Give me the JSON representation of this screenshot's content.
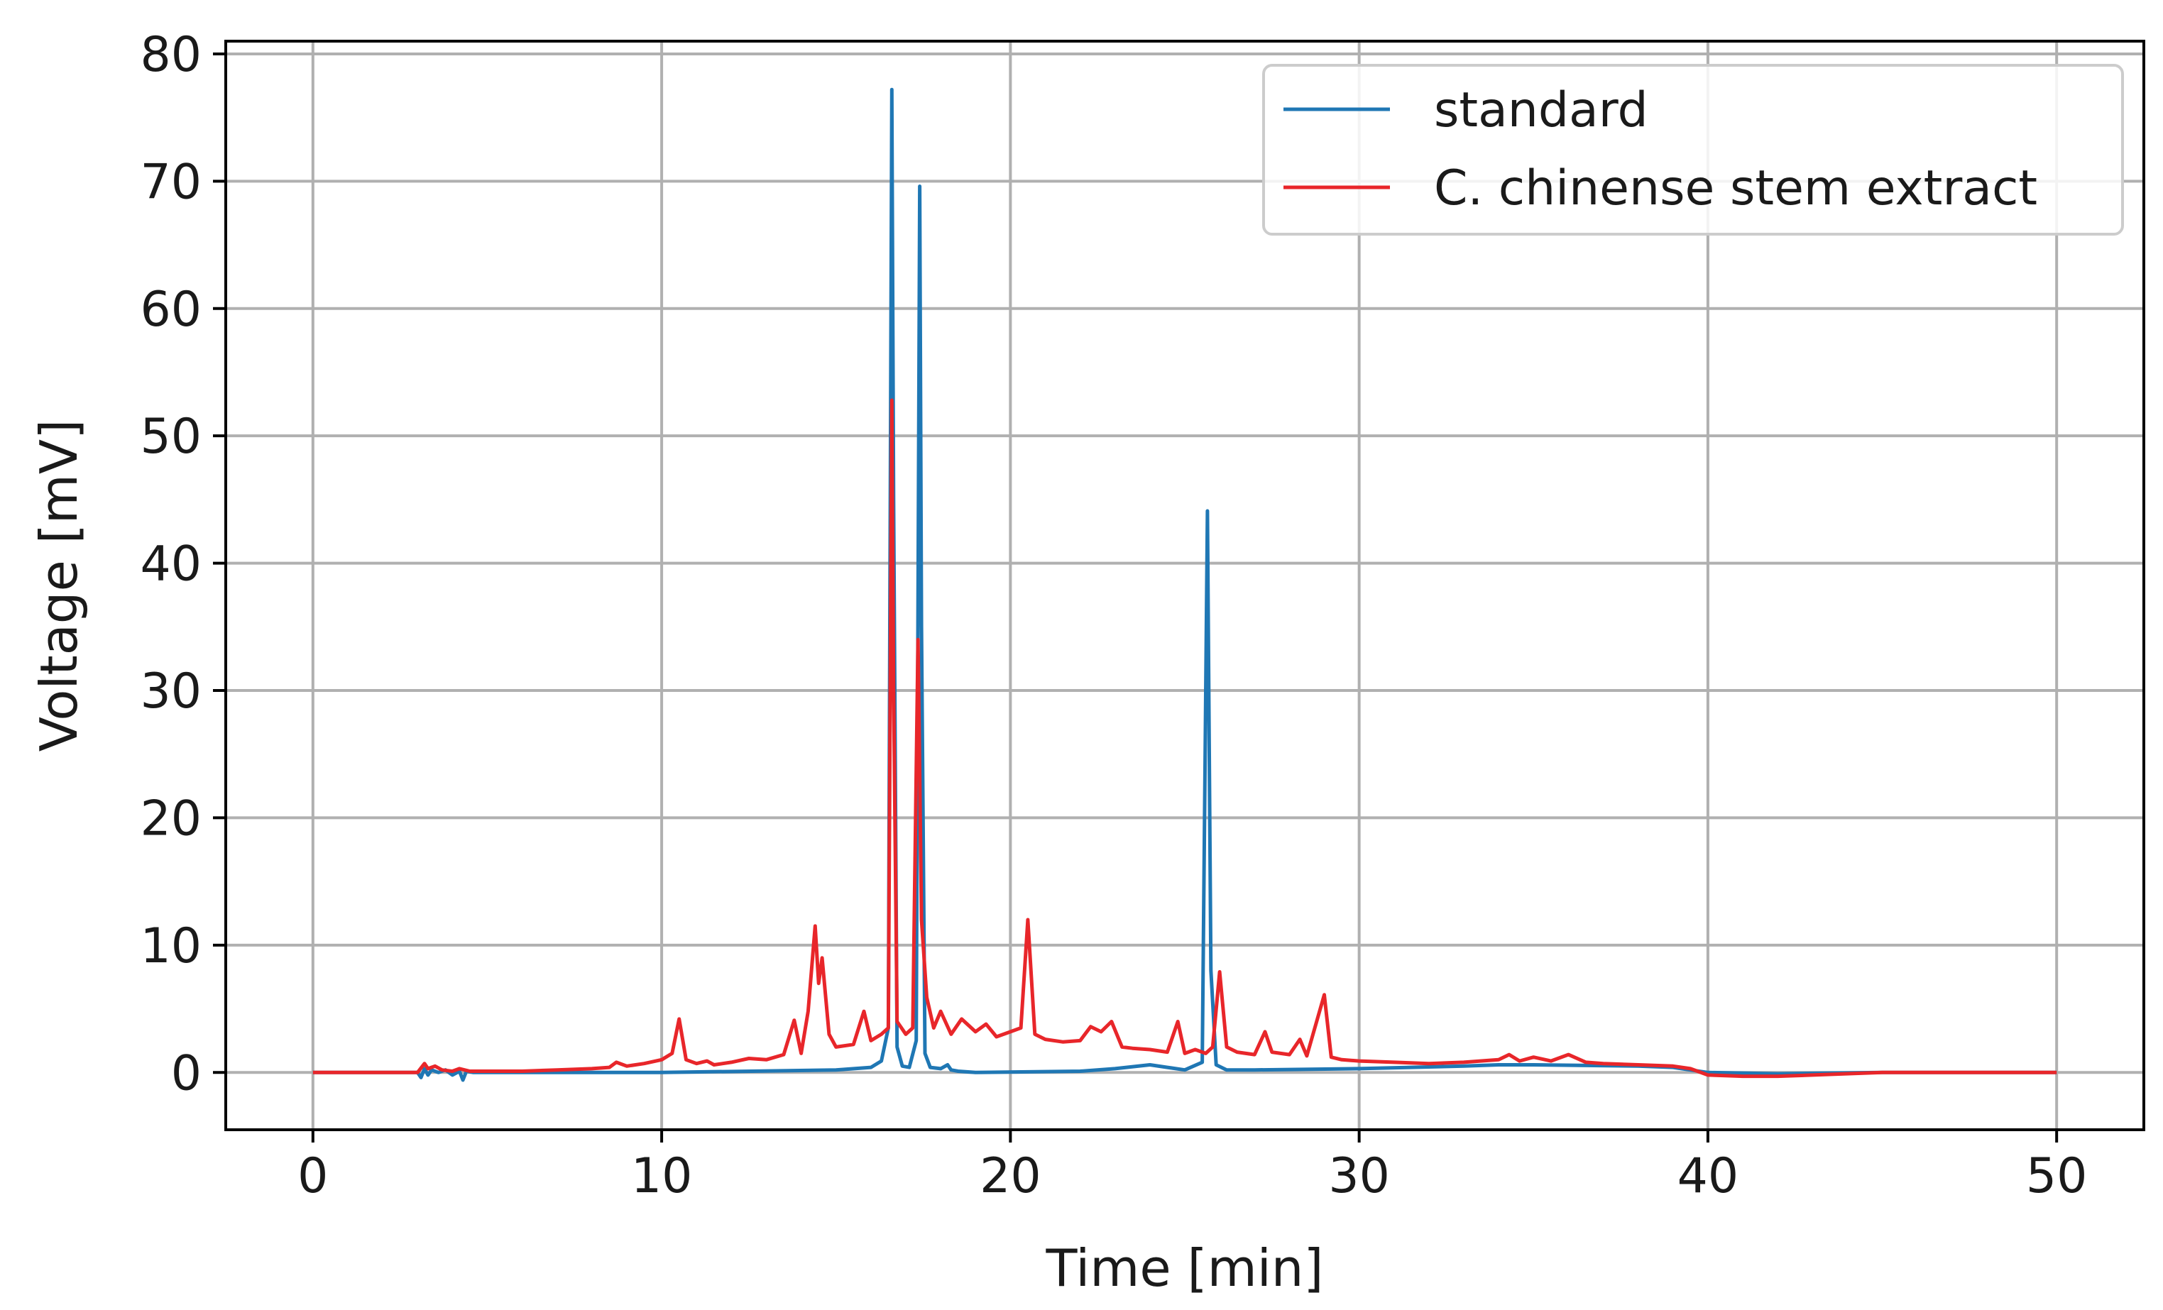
{
  "chart_data": {
    "type": "line",
    "title": "",
    "xlabel": "Time [min]",
    "ylabel": "Voltage [mV]",
    "xlim": [
      -2.5,
      52.5
    ],
    "ylim": [
      -4.5,
      81
    ],
    "xticks": [
      0,
      10,
      20,
      30,
      40,
      50
    ],
    "yticks": [
      0,
      10,
      20,
      30,
      40,
      50,
      60,
      70,
      80
    ],
    "grid": true,
    "legend": "top-right",
    "series": [
      {
        "name": "standard",
        "color": "#1f77b4",
        "x": [
          0,
          3.0,
          3.1,
          3.2,
          3.3,
          3.4,
          3.6,
          3.8,
          4.0,
          4.2,
          4.3,
          4.4,
          4.6,
          5.0,
          10.0,
          15.0,
          16.0,
          16.3,
          16.5,
          16.6,
          16.65,
          16.75,
          16.9,
          17.1,
          17.3,
          17.4,
          17.45,
          17.55,
          17.7,
          18.0,
          18.2,
          18.3,
          18.5,
          19.0,
          22.0,
          23.0,
          24.0,
          24.5,
          25.0,
          25.5,
          25.65,
          25.75,
          25.9,
          26.2,
          27.0,
          30.0,
          33.0,
          34.0,
          35.0,
          38.0,
          39.0,
          40.0,
          42.0,
          45.0,
          50.0
        ],
        "y": [
          0,
          0.0,
          -0.4,
          0.3,
          -0.2,
          0.2,
          0.0,
          0.2,
          -0.2,
          0.1,
          -0.6,
          0.1,
          0.0,
          0.0,
          0.0,
          0.2,
          0.4,
          0.9,
          3.5,
          77.2,
          45.0,
          2.0,
          0.5,
          0.4,
          2.5,
          69.6,
          35.0,
          1.5,
          0.4,
          0.3,
          0.6,
          0.2,
          0.1,
          0.0,
          0.1,
          0.3,
          0.6,
          0.4,
          0.2,
          0.8,
          44.1,
          8.0,
          0.6,
          0.2,
          0.2,
          0.3,
          0.5,
          0.6,
          0.6,
          0.5,
          0.4,
          0.0,
          -0.1,
          0.0,
          0.0
        ]
      },
      {
        "name": "C. chinense stem extract",
        "color": "#e8262a",
        "x": [
          0,
          3.0,
          3.2,
          3.3,
          3.5,
          3.7,
          4.0,
          4.2,
          4.5,
          5.0,
          6.0,
          7.0,
          8.0,
          8.5,
          8.7,
          9.0,
          9.5,
          10.0,
          10.3,
          10.5,
          10.7,
          11.0,
          11.3,
          11.5,
          12.0,
          12.5,
          13.0,
          13.5,
          13.8,
          14.0,
          14.2,
          14.4,
          14.5,
          14.6,
          14.8,
          15.0,
          15.5,
          15.8,
          16.0,
          16.3,
          16.5,
          16.6,
          16.65,
          16.75,
          17.0,
          17.2,
          17.35,
          17.45,
          17.6,
          17.8,
          18.0,
          18.3,
          18.6,
          19.0,
          19.3,
          19.6,
          20.0,
          20.3,
          20.5,
          20.7,
          21.0,
          21.5,
          22.0,
          22.3,
          22.6,
          22.9,
          23.2,
          23.5,
          24.0,
          24.5,
          24.8,
          25.0,
          25.3,
          25.6,
          25.8,
          26.0,
          26.2,
          26.5,
          27.0,
          27.3,
          27.5,
          28.0,
          28.3,
          28.5,
          29.0,
          29.2,
          29.5,
          30.0,
          31.0,
          32.0,
          33.0,
          34.0,
          34.3,
          34.6,
          35.0,
          35.5,
          36.0,
          36.5,
          37.0,
          38.0,
          39.0,
          39.5,
          40.0,
          41.0,
          42.0,
          43.0,
          45.0,
          48.0,
          50.0
        ],
        "y": [
          0,
          0.0,
          0.7,
          0.3,
          0.5,
          0.2,
          0.1,
          0.3,
          0.1,
          0.1,
          0.1,
          0.2,
          0.3,
          0.4,
          0.8,
          0.5,
          0.7,
          1.0,
          1.5,
          4.2,
          1.0,
          0.7,
          0.9,
          0.6,
          0.8,
          1.1,
          1.0,
          1.4,
          4.1,
          1.5,
          4.8,
          11.5,
          7.0,
          9.0,
          3.0,
          2.0,
          2.2,
          4.8,
          2.5,
          3.0,
          3.5,
          52.8,
          30.0,
          4.0,
          3.0,
          3.5,
          34.0,
          12.0,
          5.9,
          3.5,
          4.8,
          3.0,
          4.2,
          3.2,
          3.8,
          2.8,
          3.2,
          3.5,
          12.0,
          3.0,
          2.6,
          2.4,
          2.5,
          3.6,
          3.2,
          4.0,
          2.0,
          1.9,
          1.8,
          1.6,
          4.0,
          1.5,
          1.8,
          1.5,
          2.0,
          7.9,
          2.0,
          1.6,
          1.4,
          3.2,
          1.6,
          1.4,
          2.6,
          1.3,
          6.1,
          1.2,
          1.0,
          0.9,
          0.8,
          0.7,
          0.8,
          1.0,
          1.4,
          0.9,
          1.2,
          0.9,
          1.4,
          0.8,
          0.7,
          0.6,
          0.5,
          0.3,
          -0.2,
          -0.3,
          -0.3,
          -0.2,
          0.0,
          0.0,
          0.0
        ]
      }
    ]
  }
}
